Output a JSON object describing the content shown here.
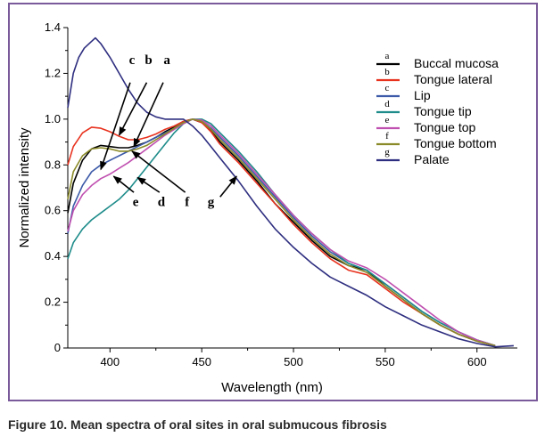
{
  "caption": "Figure 10. Mean spectra of oral sites in oral submucous fibrosis",
  "chart_data": {
    "type": "line",
    "xlabel": "Wavelength (nm)",
    "ylabel": "Normalized intensity",
    "xlim": [
      377,
      622
    ],
    "ylim": [
      0,
      1.4
    ],
    "x_ticks": [
      400,
      450,
      500,
      550,
      600
    ],
    "y_ticks": [
      0,
      0.2,
      0.4,
      0.6,
      0.8,
      1.0,
      1.2,
      1.4
    ],
    "x_tick_labels": [
      "400",
      "450",
      "500",
      "550",
      "600"
    ],
    "y_tick_labels": [
      "0",
      "0.2",
      "0.4",
      "0.6",
      "0.8",
      "1.0",
      "1.2",
      "1.4"
    ],
    "grid": false,
    "legend_position": "top-right",
    "series": [
      {
        "letter": "a",
        "name": "Buccal mucosa",
        "color": "#000000",
        "x": [
          377,
          380,
          385,
          390,
          395,
          400,
          405,
          410,
          415,
          420,
          425,
          430,
          435,
          440,
          445,
          450,
          455,
          460,
          470,
          480,
          490,
          500,
          510,
          520,
          530,
          540,
          550,
          560,
          570,
          580,
          590,
          600,
          610
        ],
        "y": [
          0.59,
          0.72,
          0.82,
          0.87,
          0.885,
          0.88,
          0.875,
          0.875,
          0.885,
          0.9,
          0.92,
          0.945,
          0.965,
          0.99,
          1.0,
          0.985,
          0.95,
          0.9,
          0.82,
          0.73,
          0.63,
          0.55,
          0.47,
          0.4,
          0.36,
          0.34,
          0.27,
          0.21,
          0.15,
          0.1,
          0.06,
          0.03,
          0.01
        ]
      },
      {
        "letter": "b",
        "name": "Tongue lateral",
        "color": "#e8321e",
        "x": [
          377,
          380,
          385,
          390,
          395,
          400,
          405,
          410,
          415,
          420,
          425,
          430,
          435,
          440,
          445,
          450,
          455,
          460,
          470,
          480,
          490,
          500,
          510,
          520,
          530,
          540,
          550,
          560,
          570,
          580,
          590,
          600,
          610
        ],
        "y": [
          0.8,
          0.88,
          0.94,
          0.965,
          0.96,
          0.945,
          0.925,
          0.91,
          0.91,
          0.92,
          0.935,
          0.955,
          0.97,
          0.99,
          1.0,
          0.985,
          0.945,
          0.89,
          0.81,
          0.72,
          0.63,
          0.54,
          0.46,
          0.39,
          0.34,
          0.32,
          0.26,
          0.2,
          0.15,
          0.1,
          0.06,
          0.03,
          0.01
        ]
      },
      {
        "letter": "c",
        "name": "Lip",
        "color": "#3c5aa8",
        "x": [
          377,
          380,
          385,
          390,
          395,
          400,
          405,
          410,
          415,
          420,
          425,
          430,
          435,
          440,
          445,
          450,
          455,
          460,
          470,
          480,
          490,
          500,
          510,
          520,
          530,
          540,
          550,
          560,
          570,
          580,
          590,
          600,
          610
        ],
        "y": [
          0.5,
          0.62,
          0.71,
          0.77,
          0.8,
          0.82,
          0.84,
          0.86,
          0.88,
          0.9,
          0.92,
          0.94,
          0.96,
          0.985,
          1.0,
          0.99,
          0.96,
          0.92,
          0.84,
          0.75,
          0.66,
          0.57,
          0.49,
          0.42,
          0.37,
          0.34,
          0.28,
          0.22,
          0.16,
          0.11,
          0.07,
          0.035,
          0.01
        ]
      },
      {
        "letter": "d",
        "name": "Tongue tip",
        "color": "#1e8c8a",
        "x": [
          377,
          380,
          385,
          390,
          395,
          400,
          405,
          410,
          415,
          420,
          425,
          430,
          435,
          440,
          445,
          450,
          455,
          460,
          470,
          480,
          490,
          500,
          510,
          520,
          530,
          540,
          550,
          560,
          570,
          580,
          590,
          600,
          610
        ],
        "y": [
          0.39,
          0.46,
          0.52,
          0.56,
          0.59,
          0.62,
          0.65,
          0.69,
          0.74,
          0.79,
          0.84,
          0.89,
          0.94,
          0.98,
          1.0,
          1.0,
          0.98,
          0.94,
          0.86,
          0.77,
          0.67,
          0.58,
          0.5,
          0.43,
          0.37,
          0.34,
          0.28,
          0.22,
          0.16,
          0.11,
          0.07,
          0.035,
          0.01
        ]
      },
      {
        "letter": "e",
        "name": "Tongue top",
        "color": "#c050b0",
        "x": [
          377,
          380,
          385,
          390,
          395,
          400,
          405,
          410,
          415,
          420,
          425,
          430,
          435,
          440,
          445,
          450,
          455,
          460,
          470,
          480,
          490,
          500,
          510,
          520,
          530,
          540,
          550,
          560,
          570,
          580,
          590,
          600,
          610
        ],
        "y": [
          0.51,
          0.6,
          0.67,
          0.71,
          0.74,
          0.76,
          0.785,
          0.81,
          0.84,
          0.87,
          0.9,
          0.93,
          0.955,
          0.98,
          1.0,
          0.995,
          0.97,
          0.93,
          0.85,
          0.76,
          0.67,
          0.58,
          0.5,
          0.43,
          0.38,
          0.35,
          0.3,
          0.24,
          0.18,
          0.12,
          0.07,
          0.035,
          0.01
        ]
      },
      {
        "letter": "f",
        "name": "Tongue bottom",
        "color": "#8a8a28",
        "x": [
          377,
          380,
          385,
          390,
          395,
          400,
          405,
          410,
          415,
          420,
          425,
          430,
          435,
          440,
          445,
          450,
          455,
          460,
          470,
          480,
          490,
          500,
          510,
          520,
          530,
          540,
          550,
          560,
          570,
          580,
          590,
          600,
          610
        ],
        "y": [
          0.65,
          0.77,
          0.84,
          0.87,
          0.875,
          0.87,
          0.86,
          0.86,
          0.87,
          0.885,
          0.91,
          0.935,
          0.96,
          0.985,
          1.0,
          0.99,
          0.955,
          0.91,
          0.83,
          0.74,
          0.65,
          0.56,
          0.48,
          0.41,
          0.36,
          0.33,
          0.27,
          0.21,
          0.15,
          0.1,
          0.06,
          0.03,
          0.01
        ]
      },
      {
        "letter": "g",
        "name": "Palate",
        "color": "#2e2e80",
        "x": [
          377,
          380,
          383,
          386,
          390,
          392,
          395,
          400,
          405,
          410,
          415,
          420,
          425,
          430,
          435,
          440,
          445,
          450,
          455,
          460,
          470,
          480,
          490,
          500,
          510,
          520,
          530,
          540,
          550,
          560,
          570,
          580,
          590,
          600,
          610,
          620
        ],
        "y": [
          1.05,
          1.2,
          1.27,
          1.31,
          1.34,
          1.355,
          1.33,
          1.27,
          1.2,
          1.13,
          1.07,
          1.03,
          1.01,
          1.0,
          1.0,
          1.0,
          0.97,
          0.93,
          0.88,
          0.83,
          0.73,
          0.62,
          0.52,
          0.44,
          0.37,
          0.31,
          0.27,
          0.23,
          0.18,
          0.14,
          0.1,
          0.07,
          0.04,
          0.02,
          0.005,
          0.01
        ]
      }
    ],
    "annotations": [
      {
        "label": "c",
        "text_at": [
          412,
          1.24
        ],
        "arrow_from": [
          411,
          1.16
        ],
        "arrow_to": [
          395,
          0.78
        ]
      },
      {
        "label": "b",
        "text_at": [
          421,
          1.24
        ],
        "arrow_from": [
          420,
          1.16
        ],
        "arrow_to": [
          405,
          0.93
        ]
      },
      {
        "label": "a",
        "text_at": [
          431,
          1.24
        ],
        "arrow_from": [
          429,
          1.16
        ],
        "arrow_to": [
          413,
          0.88
        ]
      },
      {
        "label": "e",
        "text_at": [
          414,
          0.62
        ],
        "arrow_from": [
          413,
          0.68
        ],
        "arrow_to": [
          402,
          0.75
        ]
      },
      {
        "label": "d",
        "text_at": [
          428,
          0.62
        ],
        "arrow_from": [
          427,
          0.68
        ],
        "arrow_to": [
          415,
          0.745
        ]
      },
      {
        "label": "f",
        "text_at": [
          442,
          0.62
        ],
        "arrow_from": [
          441,
          0.68
        ],
        "arrow_to": [
          412,
          0.86
        ]
      },
      {
        "label": "g",
        "text_at": [
          455,
          0.62
        ],
        "arrow_from": [
          460,
          0.66
        ],
        "arrow_to": [
          469,
          0.75
        ]
      }
    ]
  }
}
